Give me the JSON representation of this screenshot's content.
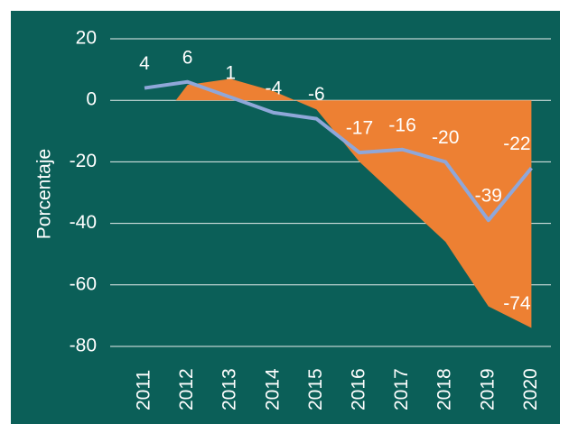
{
  "chart_data": {
    "type": "line",
    "y_label": "Porcentaje",
    "categories": [
      "2011",
      "2012",
      "2013",
      "2014",
      "2015",
      "2016",
      "2017",
      "2018",
      "2019",
      "2020"
    ],
    "series": [
      {
        "type": "area",
        "color": "#ed8033",
        "values": [
          null,
          5,
          7,
          3,
          -3,
          -20,
          -33,
          -46,
          -67,
          -74
        ],
        "labeled": [
          9
        ]
      },
      {
        "type": "line",
        "color": "#8fa7d9",
        "values": [
          4,
          6,
          1,
          -4,
          -6,
          -17,
          -16,
          -20,
          -39,
          -22
        ],
        "labeled": [
          0,
          1,
          2,
          3,
          4,
          5,
          6,
          7,
          8,
          9
        ]
      }
    ],
    "ylim": [
      -80,
      20
    ],
    "yticks": [
      -80,
      -60,
      -40,
      -20,
      0,
      20
    ],
    "grid": true
  }
}
